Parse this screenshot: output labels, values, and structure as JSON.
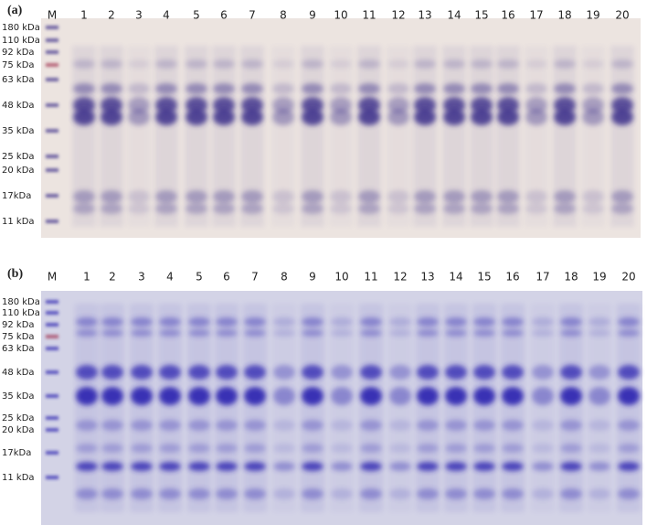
{
  "panels": [
    {
      "label": "(a)",
      "lanes": [
        "M",
        "1",
        "2",
        "3",
        "4",
        "5",
        "6",
        "7",
        "8",
        "9",
        "10",
        "11",
        "12",
        "13",
        "14",
        "15",
        "16",
        "17",
        "18",
        "19",
        "20"
      ],
      "markers": [
        "180 kDa",
        "110 kDa",
        "92  kDa",
        "75 kDa",
        "63 kDa",
        "48 kDa",
        "35 kDa",
        "25 kDa",
        "20 kDa",
        "17kDa",
        "11 kDa"
      ]
    },
    {
      "label": "(b)",
      "lanes": [
        "M",
        "1",
        "2",
        "3",
        "4",
        "5",
        "6",
        "7",
        "8",
        "9",
        "10",
        "11",
        "12",
        "13",
        "14",
        "15",
        "16",
        "17",
        "18",
        "19",
        "20"
      ],
      "markers": [
        "180 kDa",
        "110 kDa",
        "92 kDa",
        "75 kDa",
        "63 kDa",
        "48 kDa",
        "35 kDa",
        "25 kDa",
        "20 kDa",
        "17kDa",
        "11 kDa"
      ]
    }
  ]
}
